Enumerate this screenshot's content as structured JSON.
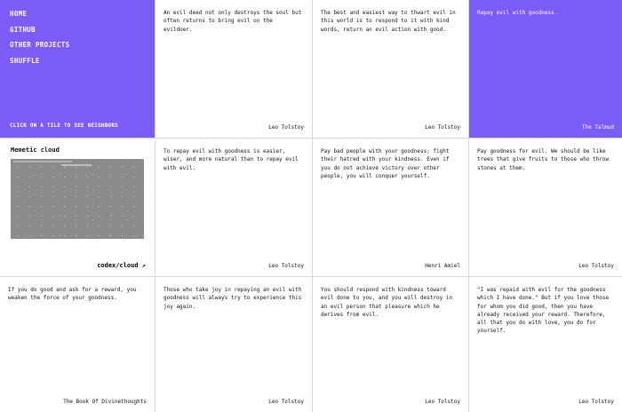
{
  "theme": {
    "purple": "#7b5cf6",
    "separator": "#d8d6e2",
    "tile_bg": "#ffffff",
    "text": "#141414",
    "image_gray": "#8b8b8b"
  },
  "nav": {
    "items": [
      {
        "label": "HOME"
      },
      {
        "label": "GITHUB"
      },
      {
        "label": "OTHER PROJECTS"
      },
      {
        "label": "SHUFFLE"
      }
    ],
    "hint": "CLICK ON A TILE TO SEE NEIGHBORS"
  },
  "project": {
    "title": "Memetic cloud",
    "link_label": "codex/cloud",
    "arrow_icon": "↗"
  },
  "quotes": [
    {
      "text": "An evil deed not only destroys the soul but often returns to bring evil on the evildoer.",
      "author": "Leo Tolstoy",
      "variant": "white"
    },
    {
      "text": "The best and easiest way to thwart evil in this world is to respond to it with kind words, return an evil action with good.",
      "author": "Leo Tolstoy",
      "variant": "white"
    },
    {
      "text": "Repay evil with goodness.",
      "author": "The Talmud",
      "variant": "purple"
    },
    {
      "text": "To repay evil with goodness is easier, wiser, and more natural than to repay evil with evil.",
      "author": "Leo Tolstoy",
      "variant": "white"
    },
    {
      "text": "Pay bad people with your goodness; fight their hatred with your kindness. Even if you do not achieve victory over other people, you will conquer yourself.",
      "author": "Henri Amiel",
      "variant": "white"
    },
    {
      "text": "Pay goodness for evil. We should be like trees that give fruits to those who throw stones at them.",
      "author": "Leo Tolstoy",
      "variant": "white"
    },
    {
      "text": "If you do good and ask for a reward, you weaken the force of your goodness.",
      "author": "The Book Of Divinethoughts",
      "variant": "white"
    },
    {
      "text": "Those who take joy in repaying an evil with goodness will always try to experience this joy again.",
      "author": "Leo Tolstoy",
      "variant": "white"
    },
    {
      "text": "You should respond with kindness toward evil done to you, and you will destroy in an evil person that pleasure which he derives from evil.",
      "author": "Leo Tolstoy",
      "variant": "white"
    },
    {
      "text": "\"I was repaid with evil for the goodness which I have done.\" But if you love those for whom you did good, then you have already received your reward. Therefore, all that you do with love, you do for yourself.",
      "author": "Leo Tolstoy",
      "variant": "white"
    }
  ]
}
